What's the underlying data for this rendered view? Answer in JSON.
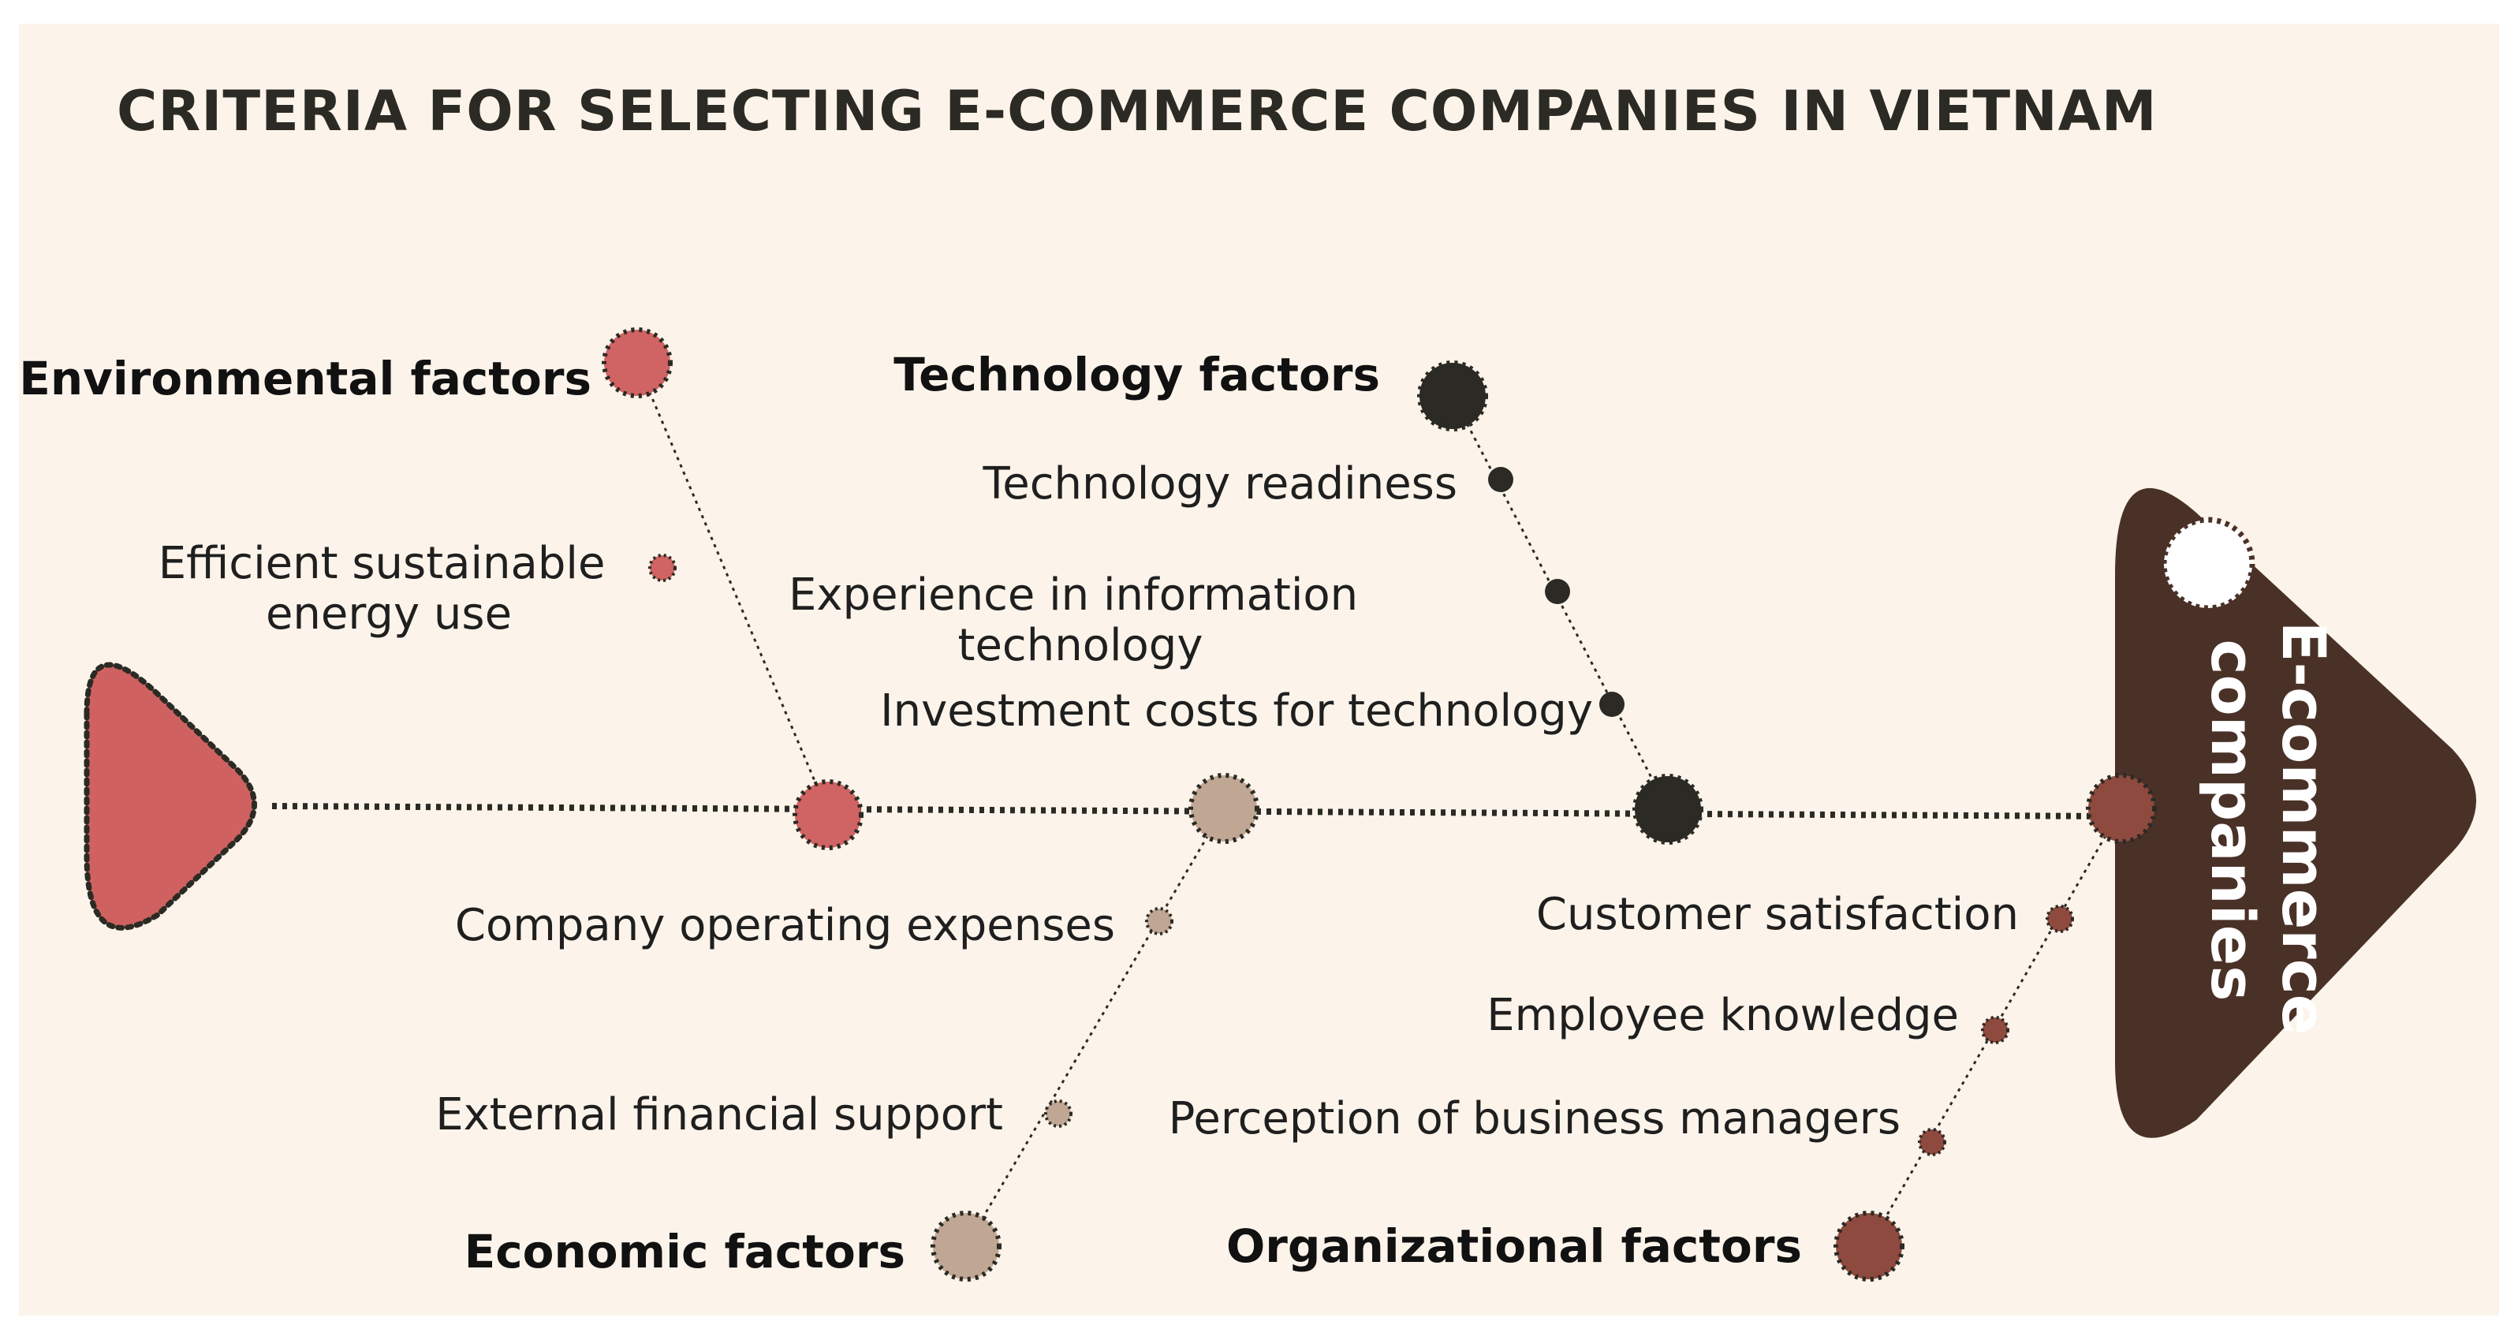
{
  "title": "CRITERIA FOR SELECTING E-COMMERCE COMPANIES IN VIETNAM",
  "head": {
    "label_line1": "E-commerce",
    "label_line2": "companies"
  },
  "colors": {
    "background": "#fcf4ea",
    "environmental": "#d06363",
    "technology": "#2b2a24",
    "economic": "#bfa794",
    "organizational": "#8f4a3f",
    "head": "#4a3127",
    "tail": "#cf6260",
    "spine": "#2b2a24"
  },
  "categories": {
    "environmental": {
      "label": "Environmental factors",
      "items": [
        "Efficient sustainable energy use"
      ]
    },
    "technology": {
      "label": "Technology factors",
      "items": [
        "Technology readiness",
        "Experience in information technology",
        "Investment costs for technology"
      ]
    },
    "economic": {
      "label": "Economic factors",
      "items": [
        "Company operating expenses",
        "External financial support"
      ]
    },
    "organizational": {
      "label": "Organizational factors",
      "items": [
        "Customer satisfaction",
        "Employee knowledge",
        "Perception of business managers"
      ]
    }
  }
}
